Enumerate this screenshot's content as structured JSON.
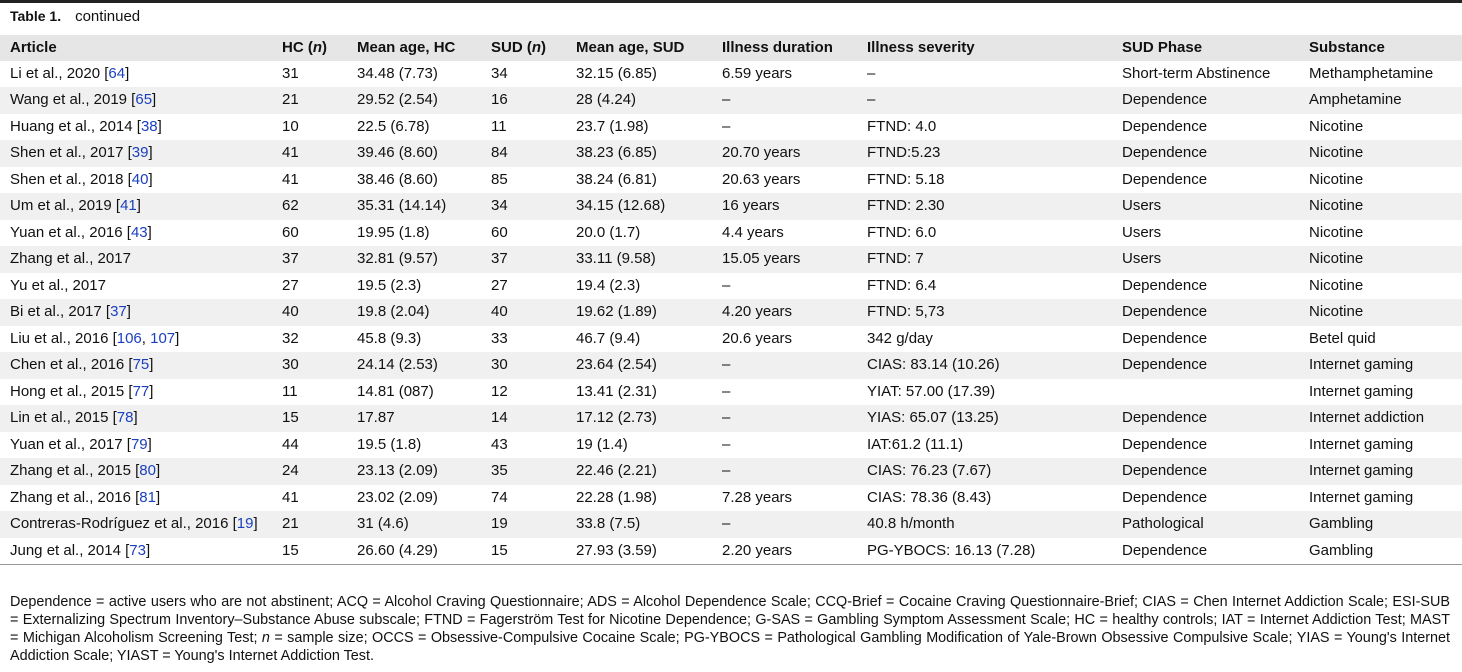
{
  "caption": {
    "label": "Table 1.",
    "text": "continued"
  },
  "table": {
    "header": [
      "Article",
      [
        "HC (",
        "n",
        ")"
      ],
      "Mean age, HC",
      [
        "SUD (",
        "n",
        ")"
      ],
      "Mean age, SUD",
      "Illness duration",
      "Illness severity",
      "SUD Phase",
      "Substance"
    ],
    "rows": [
      [
        [
          "Li et al., 2020 [",
          "64",
          "]"
        ],
        "31",
        "34.48 (7.73)",
        "34",
        "32.15 (6.85)",
        "6.59 years",
        "–",
        "Short-term Abstinence",
        "Methamphetamine"
      ],
      [
        [
          "Wang et al., 2019 [",
          "65",
          "]"
        ],
        "21",
        "29.52 (2.54)",
        "16",
        "28 (4.24)",
        "–",
        "–",
        "Dependence",
        "Amphetamine"
      ],
      [
        [
          "Huang et al., 2014 [",
          "38",
          "]"
        ],
        "10",
        "22.5 (6.78)",
        "11",
        "23.7 (1.98)",
        "–",
        "FTND: 4.0",
        "Dependence",
        "Nicotine"
      ],
      [
        [
          "Shen et al., 2017 [",
          "39",
          "]"
        ],
        "41",
        "39.46 (8.60)",
        "84",
        "38.23 (6.85)",
        "20.70 years",
        "FTND:5.23",
        "Dependence",
        "Nicotine"
      ],
      [
        [
          "Shen et al., 2018 [",
          "40",
          "]"
        ],
        "41",
        "38.46 (8.60)",
        "85",
        "38.24 (6.81)",
        "20.63 years",
        "FTND: 5.18",
        "Dependence",
        "Nicotine"
      ],
      [
        [
          "Um et al., 2019 [",
          "41",
          "]"
        ],
        "62",
        "35.31 (14.14)",
        "34",
        "34.15 (12.68)",
        "16 years",
        "FTND: 2.30",
        "Users",
        "Nicotine"
      ],
      [
        [
          "Yuan et al., 2016 [",
          "43",
          "]"
        ],
        "60",
        "19.95 (1.8)",
        "60",
        "20.0 (1.7)",
        "4.4 years",
        "FTND: 6.0",
        "Users",
        "Nicotine"
      ],
      [
        [
          "Zhang et al., 2017"
        ],
        "37",
        "32.81 (9.57)",
        "37",
        "33.11 (9.58)",
        "15.05 years",
        "FTND: 7",
        "Users",
        "Nicotine"
      ],
      [
        [
          "Yu et al., 2017"
        ],
        "27",
        "19.5 (2.3)",
        "27",
        "19.4 (2.3)",
        "–",
        "FTND: 6.4",
        "Dependence",
        "Nicotine"
      ],
      [
        [
          "Bi et al., 2017 [",
          "37",
          "]"
        ],
        "40",
        "19.8 (2.04)",
        "40",
        "19.62 (1.89)",
        "4.20 years",
        "FTND: 5,73",
        "Dependence",
        "Nicotine"
      ],
      [
        [
          "Liu et al., 2016 [",
          "106",
          ", ",
          "107",
          "]"
        ],
        "32",
        "45.8 (9.3)",
        "33",
        "46.7 (9.4)",
        "20.6 years",
        "342 g/day",
        "Dependence",
        "Betel quid"
      ],
      [
        [
          "Chen et al., 2016 [",
          "75",
          "]"
        ],
        "30",
        "24.14 (2.53)",
        "30",
        "23.64 (2.54)",
        "–",
        "CIAS: 83.14 (10.26)",
        "Dependence",
        "Internet gaming"
      ],
      [
        [
          "Hong et al., 2015 [",
          "77",
          "]"
        ],
        "11",
        "14.81 (087)",
        "12",
        "13.41 (2.31)",
        "–",
        "YIAT: 57.00 (17.39)",
        null,
        "Internet gaming"
      ],
      [
        [
          "Lin et al., 2015 [",
          "78",
          "]"
        ],
        "15",
        "17.87",
        "14",
        "17.12 (2.73)",
        "–",
        "YIAS: 65.07 (13.25)",
        "Dependence",
        "Internet addiction"
      ],
      [
        [
          "Yuan et al., 2017 [",
          "79",
          "]"
        ],
        "44",
        "19.5 (1.8)",
        "43",
        "19 (1.4)",
        "–",
        "IAT:61.2 (11.1)",
        "Dependence",
        "Internet gaming"
      ],
      [
        [
          "Zhang et al., 2015 [",
          "80",
          "]"
        ],
        "24",
        "23.13 (2.09)",
        "35",
        "22.46 (2.21)",
        "–",
        "CIAS: 76.23 (7.67)",
        "Dependence",
        "Internet gaming"
      ],
      [
        [
          "Zhang et al., 2016 [",
          "81",
          "]"
        ],
        "41",
        "23.02 (2.09)",
        "74",
        "22.28 (1.98)",
        "7.28 years",
        "CIAS: 78.36 (8.43)",
        "Dependence",
        "Internet gaming"
      ],
      [
        [
          "Contreras-Rodríguez et al., 2016 [",
          "19",
          "]"
        ],
        "21",
        "31 (4.6)",
        "19",
        "33.8 (7.5)",
        "–",
        "40.8 h/month",
        "Pathological",
        "Gambling"
      ],
      [
        [
          "Jung et al., 2014 [",
          "73",
          "]"
        ],
        "15",
        "26.60 (4.29)",
        "15",
        "27.93 (3.59)",
        "2.20 years",
        "PG-YBOCS: 16.13 (7.28)",
        "Dependence",
        "Gambling"
      ]
    ]
  },
  "footnote": [
    "Dependence = active users who are not abstinent; ACQ = Alcohol Craving Questionnaire; ADS = Alcohol Dependence Scale; CCQ-Brief = Cocaine Craving Questionnaire-Brief; CIAS = Chen Internet Addiction Scale; ESI-SUB = Externalizing Spectrum Inventory–Substance Abuse subscale; FTND = Fagerström Test for Nicotine Dependence; G-SAS = Gambling Symptom Assessment Scale; HC = healthy controls; IAT = Internet Addiction Test; MAST = Michigan Alcoholism Screening Test; ",
    "n",
    " = sample size; OCCS = Obsessive-Compulsive Cocaine Scale; PG-YBOCS = Pathological Gambling Modification of Yale-Brown Obsessive Compulsive Scale; YIAS = Young's Internet Addiction Scale; YIAST = Young's Internet Addiction Test."
  ]
}
